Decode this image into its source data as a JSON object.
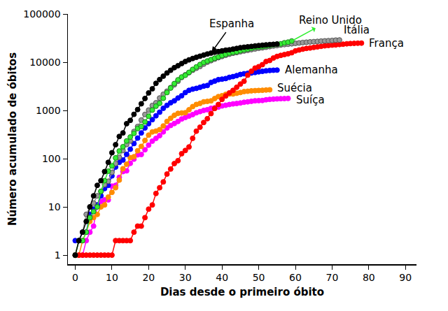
{
  "chart_data": {
    "type": "line",
    "x_label": "Dias desde o primeiro óbito",
    "y_label": "Número acumulado de óbitos",
    "log": "y",
    "grid": false,
    "marker": "circle",
    "xlim": [
      -2,
      93
    ],
    "xticks": [
      0,
      10,
      20,
      30,
      40,
      50,
      60,
      70,
      80,
      90
    ],
    "ylim": [
      0.65,
      100000
    ],
    "yticks": [
      1,
      10,
      100,
      1000,
      10000,
      100000
    ],
    "x": [
      0,
      1,
      2,
      3,
      4,
      5,
      6,
      7,
      8,
      9,
      10,
      11,
      12,
      13,
      14,
      15,
      16,
      17,
      18,
      19,
      20,
      21,
      22,
      23,
      24,
      25,
      26,
      27,
      28,
      29,
      30,
      31,
      32,
      33,
      34,
      35,
      36,
      37,
      38,
      39,
      40,
      41,
      42,
      43,
      44,
      45,
      46,
      47,
      48,
      49,
      50,
      51,
      52,
      53,
      54,
      55,
      56,
      57,
      58,
      59,
      60,
      61,
      62,
      63,
      64,
      65,
      66,
      67,
      68,
      69,
      70,
      71,
      72,
      73,
      74,
      75,
      76,
      77,
      78
    ],
    "series": [
      {
        "name": "Espanha",
        "color": "#000000",
        "values": [
          1,
          2,
          3,
          5,
          10,
          17,
          28,
          35,
          54,
          84,
          133,
          195,
          289,
          342,
          533,
          623,
          830,
          1043,
          1375,
          1772,
          2311,
          2808,
          3647,
          4365,
          5138,
          5982,
          6803,
          7716,
          8464,
          9387,
          10348,
          11198,
          11947,
          12641,
          13341,
          14045,
          14792,
          15447,
          16081,
          16606,
          17209,
          17756,
          18056,
          18708,
          19315,
          20043,
          20453,
          20852,
          21282,
          21717,
          22157,
          22524,
          22902,
          23190,
          23521,
          23822,
          null,
          null,
          null,
          null,
          null,
          null,
          null,
          null,
          null,
          null,
          null,
          null,
          null,
          null,
          null,
          null,
          null,
          null,
          null,
          null,
          null,
          null,
          null
        ]
      },
      {
        "name": "Reino Unido",
        "color": "#33ee33",
        "values": [
          1,
          2,
          2,
          3,
          6,
          8,
          10,
          21,
          35,
          55,
          71,
          104,
          144,
          177,
          233,
          281,
          335,
          422,
          465,
          578,
          759,
          1019,
          1228,
          1408,
          1789,
          2352,
          2921,
          3605,
          4313,
          4934,
          5373,
          6159,
          7097,
          7978,
          8958,
          9875,
          10612,
          11329,
          12107,
          12868,
          13729,
          14576,
          15464,
          16060,
          16509,
          17337,
          18100,
          18738,
          19506,
          20319,
          20732,
          21092,
          21678,
          22303,
          23097,
          23699,
          24055,
          25302,
          26097,
          27510,
          null,
          null,
          null,
          null,
          null,
          null,
          null,
          null,
          null,
          null,
          null,
          null,
          null,
          null,
          null,
          null,
          null,
          null,
          null
        ]
      },
      {
        "name": "Itália",
        "color": "#999999",
        "values": [
          1,
          2,
          3,
          7,
          10,
          12,
          17,
          21,
          29,
          34,
          52,
          79,
          107,
          148,
          197,
          233,
          366,
          463,
          631,
          827,
          1016,
          1266,
          1441,
          1809,
          2158,
          2503,
          2978,
          3405,
          4032,
          4825,
          5476,
          6077,
          6820,
          7503,
          8165,
          9134,
          10023,
          10779,
          11591,
          12428,
          13155,
          13915,
          14681,
          15362,
          15887,
          16523,
          17127,
          17669,
          18279,
          18849,
          19468,
          19899,
          20465,
          21067,
          21645,
          22170,
          22745,
          23227,
          23660,
          24114,
          24648,
          25085,
          25549,
          25969,
          26384,
          26644,
          26977,
          27359,
          27682,
          27967,
          28236,
          28710,
          28884,
          null,
          null,
          null,
          null,
          null,
          null
        ]
      },
      {
        "name": "França",
        "color": "#ff0000",
        "values": [
          1,
          1,
          1,
          1,
          1,
          1,
          1,
          1,
          1,
          1,
          1,
          2,
          2,
          2,
          2,
          2,
          3,
          4,
          4,
          6,
          9,
          11,
          19,
          25,
          33,
          48,
          61,
          79,
          91,
          127,
          148,
          175,
          264,
          372,
          450,
          562,
          674,
          860,
          1100,
          1331,
          1696,
          1995,
          2314,
          2606,
          3024,
          3523,
          4032,
          5387,
          6507,
          7560,
          8078,
          8911,
          10328,
          10869,
          12210,
          13197,
          13832,
          14393,
          14967,
          15729,
          17167,
          17920,
          18681,
          19323,
          19718,
          20265,
          20796,
          21340,
          21856,
          22245,
          22614,
          22856,
          23293,
          23660,
          24087,
          24376,
          24594,
          24760,
          24895
        ]
      },
      {
        "name": "Alemanha",
        "color": "#0000ff",
        "values": [
          2,
          2,
          3,
          3,
          7,
          9,
          11,
          17,
          24,
          28,
          44,
          67,
          84,
          94,
          123,
          157,
          206,
          267,
          342,
          433,
          533,
          645,
          775,
          920,
          1107,
          1275,
          1444,
          1584,
          1810,
          2016,
          2349,
          2607,
          2767,
          2872,
          3022,
          3194,
          3294,
          3804,
          4052,
          4352,
          4459,
          4586,
          4862,
          5033,
          5279,
          5575,
          5760,
          5877,
          5976,
          6126,
          6314,
          6467,
          6623,
          6736,
          6812,
          6866,
          null,
          null,
          null,
          null,
          null,
          null,
          null,
          null,
          null,
          null,
          null,
          null,
          null,
          null,
          null,
          null,
          null,
          null,
          null,
          null,
          null,
          null,
          null
        ]
      },
      {
        "name": "Suécia",
        "color": "#ff8c00",
        "values": [
          1,
          1,
          2,
          3,
          5,
          6,
          7,
          10,
          11,
          16,
          20,
          25,
          36,
          62,
          77,
          105,
          110,
          146,
          180,
          239,
          308,
          358,
          373,
          401,
          477,
          591,
          687,
          793,
          870,
          887,
          899,
          1033,
          1203,
          1333,
          1400,
          1511,
          1540,
          1580,
          1765,
          1937,
          2021,
          2152,
          2192,
          2194,
          2274,
          2355,
          2462,
          2500,
          2550,
          2580,
          2600,
          2620,
          2650,
          2680,
          null,
          null,
          null,
          null,
          null,
          null,
          null,
          null,
          null,
          null,
          null,
          null,
          null,
          null,
          null,
          null,
          null,
          null,
          null,
          null,
          null,
          null,
          null,
          null,
          null
        ]
      },
      {
        "name": "Suíça",
        "color": "#ff00ff",
        "values": [
          1,
          1,
          1,
          2,
          3,
          4,
          11,
          13,
          14,
          14,
          27,
          28,
          41,
          54,
          56,
          80,
          98,
          120,
          122,
          153,
          191,
          231,
          264,
          300,
          359,
          433,
          488,
          536,
          591,
          666,
          715,
          765,
          821,
          895,
          948,
          1002,
          1036,
          1106,
          1138,
          1174,
          1239,
          1281,
          1327,
          1368,
          1393,
          1429,
          1478,
          1509,
          1549,
          1589,
          1599,
          1610,
          1665,
          1699,
          1716,
          1737,
          1754,
          1762,
          1774,
          null,
          null,
          null,
          null,
          null,
          null,
          null,
          null,
          null,
          null,
          null,
          null,
          null,
          null,
          null,
          null,
          null,
          null,
          null,
          null
        ]
      }
    ]
  }
}
